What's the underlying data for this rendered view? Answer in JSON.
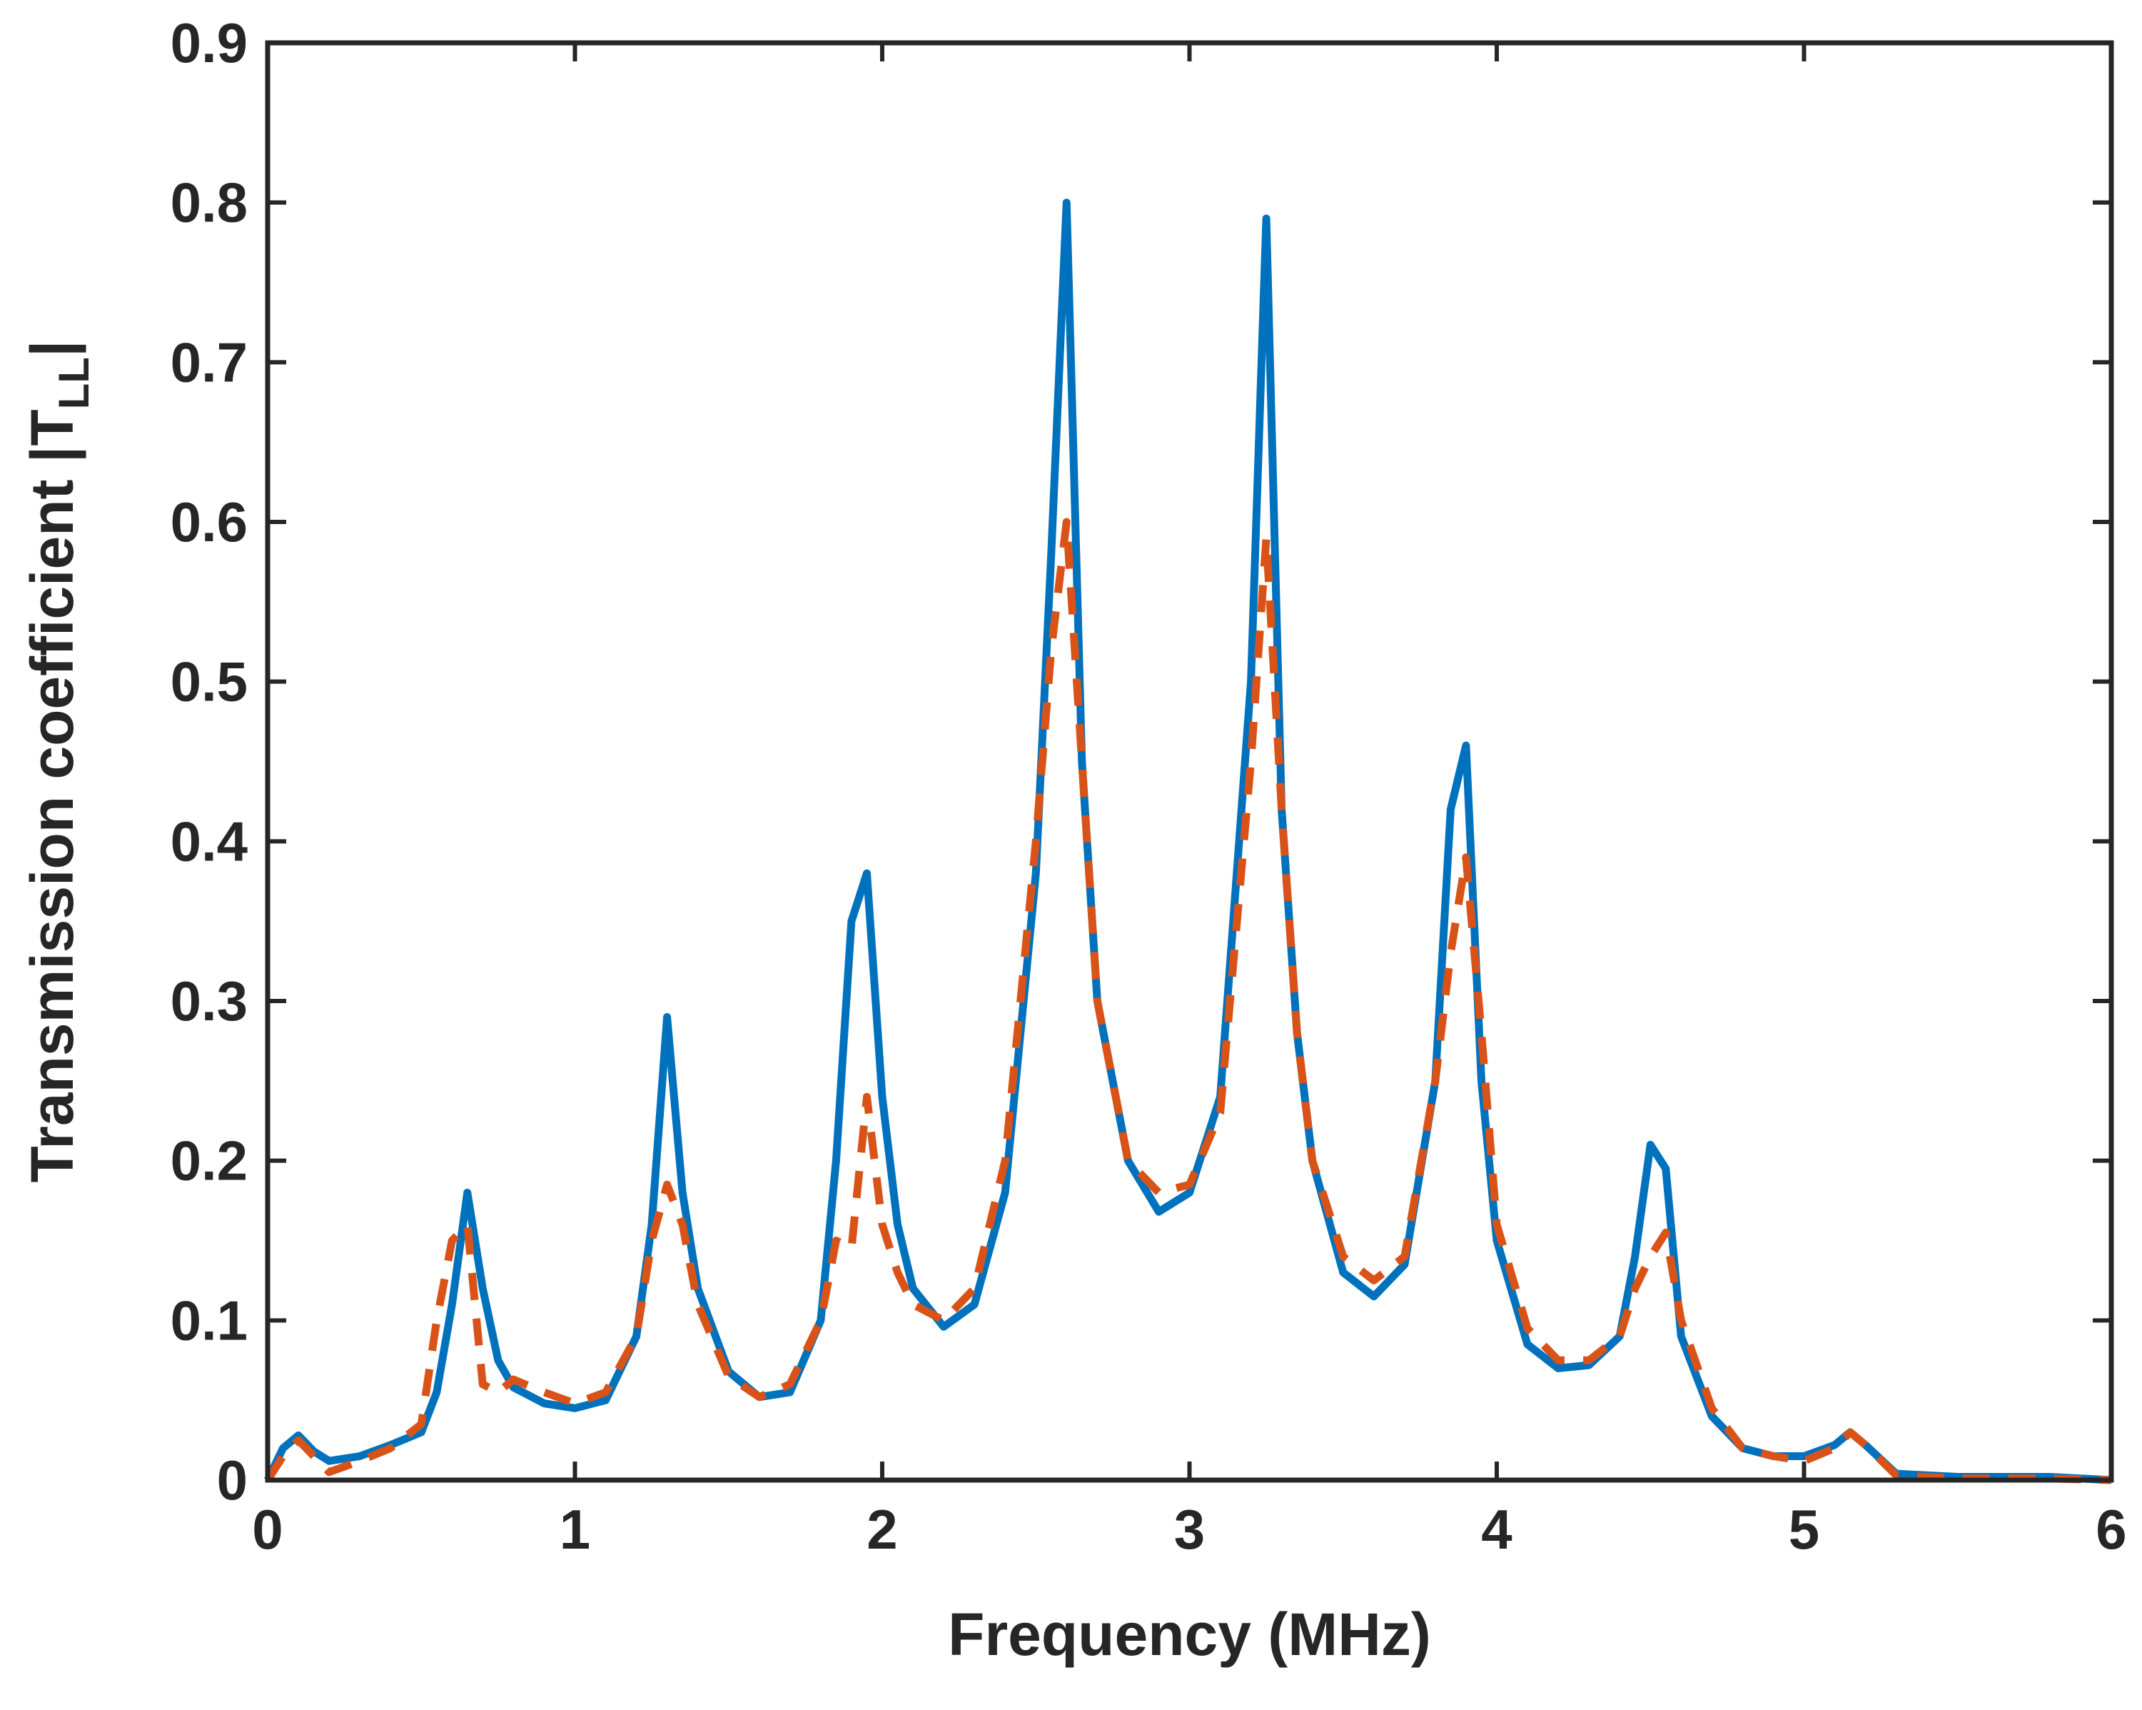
{
  "chart_data": {
    "type": "line",
    "title": "",
    "xlabel": "Frequency (MHz)",
    "ylabel": {
      "main": "Transmission coefficient |T",
      "subscript": "LL",
      "suffix": "|"
    },
    "xlim": [
      0,
      6
    ],
    "ylim": [
      0,
      0.9
    ],
    "xticks": [
      0,
      1,
      2,
      3,
      4,
      5,
      6
    ],
    "xtick_labels": [
      "0",
      "1",
      "2",
      "3",
      "4",
      "5",
      "6"
    ],
    "yticks": [
      0,
      0.1,
      0.2,
      0.3,
      0.4,
      0.5,
      0.6,
      0.7,
      0.8,
      0.9
    ],
    "ytick_labels": [
      "0",
      "0.1",
      "0.2",
      "0.3",
      "0.4",
      "0.5",
      "0.6",
      "0.7",
      "0.8",
      "0.9"
    ],
    "grid": false,
    "series": [
      {
        "name": "solid",
        "color": "#0072BD",
        "style": "solid",
        "x": [
          0,
          0.05,
          0.1,
          0.15,
          0.2,
          0.3,
          0.4,
          0.5,
          0.55,
          0.6,
          0.65,
          0.7,
          0.75,
          0.8,
          0.9,
          1.0,
          1.1,
          1.2,
          1.25,
          1.3,
          1.35,
          1.4,
          1.5,
          1.6,
          1.7,
          1.8,
          1.85,
          1.9,
          1.95,
          2.0,
          2.05,
          2.1,
          2.2,
          2.3,
          2.4,
          2.5,
          2.55,
          2.6,
          2.65,
          2.7,
          2.8,
          2.9,
          3.0,
          3.1,
          3.2,
          3.25,
          3.3,
          3.35,
          3.4,
          3.5,
          3.6,
          3.7,
          3.8,
          3.85,
          3.9,
          3.95,
          4.0,
          4.1,
          4.2,
          4.3,
          4.4,
          4.45,
          4.5,
          4.55,
          4.6,
          4.7,
          4.8,
          4.9,
          5.0,
          5.1,
          5.15,
          5.2,
          5.3,
          5.5,
          5.8,
          6.0
        ],
        "y": [
          0,
          0.02,
          0.028,
          0.018,
          0.012,
          0.015,
          0.022,
          0.03,
          0.055,
          0.11,
          0.18,
          0.12,
          0.075,
          0.058,
          0.048,
          0.045,
          0.05,
          0.09,
          0.16,
          0.29,
          0.18,
          0.12,
          0.068,
          0.052,
          0.055,
          0.1,
          0.2,
          0.35,
          0.38,
          0.24,
          0.16,
          0.12,
          0.096,
          0.11,
          0.18,
          0.38,
          0.58,
          0.8,
          0.45,
          0.3,
          0.2,
          0.168,
          0.18,
          0.24,
          0.5,
          0.79,
          0.42,
          0.28,
          0.2,
          0.13,
          0.115,
          0.135,
          0.25,
          0.42,
          0.46,
          0.25,
          0.15,
          0.085,
          0.07,
          0.072,
          0.09,
          0.14,
          0.21,
          0.195,
          0.09,
          0.04,
          0.02,
          0.015,
          0.015,
          0.022,
          0.03,
          0.022,
          0.004,
          0.002,
          0.002,
          0
        ]
      },
      {
        "name": "dashed",
        "color": "#D95319",
        "style": "dashed",
        "x": [
          0,
          0.05,
          0.1,
          0.15,
          0.2,
          0.3,
          0.4,
          0.5,
          0.55,
          0.6,
          0.65,
          0.7,
          0.75,
          0.8,
          0.9,
          1.0,
          1.1,
          1.2,
          1.25,
          1.3,
          1.35,
          1.4,
          1.5,
          1.6,
          1.7,
          1.8,
          1.85,
          1.9,
          1.95,
          2.0,
          2.05,
          2.1,
          2.2,
          2.3,
          2.4,
          2.5,
          2.55,
          2.6,
          2.65,
          2.7,
          2.8,
          2.9,
          3.0,
          3.1,
          3.2,
          3.25,
          3.3,
          3.35,
          3.4,
          3.5,
          3.6,
          3.7,
          3.8,
          3.85,
          3.9,
          3.95,
          4.0,
          4.1,
          4.2,
          4.3,
          4.4,
          4.45,
          4.5,
          4.55,
          4.6,
          4.7,
          4.8,
          4.9,
          5.0,
          5.1,
          5.15,
          5.2,
          5.3,
          5.5,
          5.8,
          6.0
        ],
        "y": [
          0,
          0.015,
          0.025,
          0.015,
          0.005,
          0.012,
          0.02,
          0.035,
          0.1,
          0.15,
          0.16,
          0.06,
          0.055,
          0.063,
          0.055,
          0.048,
          0.055,
          0.09,
          0.15,
          0.185,
          0.16,
          0.11,
          0.065,
          0.052,
          0.06,
          0.1,
          0.15,
          0.145,
          0.24,
          0.16,
          0.13,
          0.11,
          0.1,
          0.12,
          0.2,
          0.4,
          0.52,
          0.6,
          0.45,
          0.3,
          0.2,
          0.18,
          0.185,
          0.23,
          0.45,
          0.59,
          0.42,
          0.28,
          0.2,
          0.14,
          0.125,
          0.14,
          0.25,
          0.33,
          0.39,
          0.28,
          0.16,
          0.095,
          0.075,
          0.075,
          0.09,
          0.12,
          0.14,
          0.155,
          0.1,
          0.045,
          0.02,
          0.015,
          0.012,
          0.02,
          0.03,
          0.022,
          0.003,
          0.001,
          0.001,
          0
        ]
      }
    ]
  }
}
